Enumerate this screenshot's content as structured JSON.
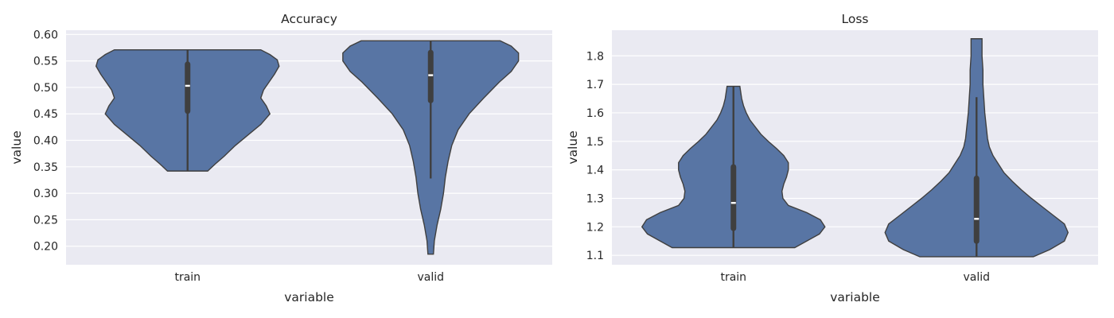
{
  "colors": {
    "violin": "#5875a4",
    "panel_bg": "#eaeaf2",
    "inner": "#3f3f3f",
    "median": "#ffffff"
  },
  "chart_data": [
    {
      "type": "violin",
      "title": "Accuracy",
      "xlabel": "variable",
      "ylabel": "value",
      "categories": [
        "train",
        "valid"
      ],
      "ylim": [
        0.165,
        0.608
      ],
      "yticks": [
        0.2,
        0.25,
        0.3,
        0.35,
        0.4,
        0.45,
        0.5,
        0.55,
        0.6
      ],
      "ytick_labels": [
        "0.20",
        "0.25",
        "0.30",
        "0.35",
        "0.40",
        "0.45",
        "0.50",
        "0.55",
        "0.60"
      ],
      "grid": true,
      "violins": [
        {
          "category": "train",
          "min": 0.342,
          "q1": 0.45,
          "median": 0.503,
          "q3": 0.549,
          "max": 0.571,
          "whisker_low": 0.342,
          "whisker_high": 0.571,
          "density": [
            [
              0.342,
              0.22
            ],
            [
              0.355,
              0.3
            ],
            [
              0.37,
              0.4
            ],
            [
              0.39,
              0.52
            ],
            [
              0.41,
              0.66
            ],
            [
              0.43,
              0.8
            ],
            [
              0.45,
              0.9
            ],
            [
              0.465,
              0.86
            ],
            [
              0.48,
              0.8
            ],
            [
              0.495,
              0.83
            ],
            [
              0.51,
              0.89
            ],
            [
              0.525,
              0.95
            ],
            [
              0.54,
              1.0
            ],
            [
              0.552,
              0.98
            ],
            [
              0.562,
              0.9
            ],
            [
              0.571,
              0.8
            ]
          ]
        },
        {
          "category": "valid",
          "min": 0.185,
          "q1": 0.47,
          "median": 0.523,
          "q3": 0.571,
          "max": 0.588,
          "whisker_low": 0.328,
          "whisker_high": 0.588,
          "density": [
            [
              0.185,
              0.03
            ],
            [
              0.21,
              0.04
            ],
            [
              0.24,
              0.07
            ],
            [
              0.27,
              0.11
            ],
            [
              0.3,
              0.14
            ],
            [
              0.33,
              0.16
            ],
            [
              0.36,
              0.19
            ],
            [
              0.39,
              0.23
            ],
            [
              0.42,
              0.3
            ],
            [
              0.45,
              0.42
            ],
            [
              0.48,
              0.58
            ],
            [
              0.51,
              0.75
            ],
            [
              0.53,
              0.88
            ],
            [
              0.55,
              0.96
            ],
            [
              0.565,
              0.96
            ],
            [
              0.578,
              0.88
            ],
            [
              0.588,
              0.76
            ]
          ]
        }
      ]
    },
    {
      "type": "violin",
      "title": "Loss",
      "xlabel": "variable",
      "ylabel": "value",
      "categories": [
        "train",
        "valid"
      ],
      "ylim": [
        1.067,
        1.89
      ],
      "yticks": [
        1.1,
        1.2,
        1.3,
        1.4,
        1.5,
        1.6,
        1.7,
        1.8
      ],
      "ytick_labels": [
        "1.1",
        "1.2",
        "1.3",
        "1.4",
        "1.5",
        "1.6",
        "1.7",
        "1.8"
      ],
      "grid": true,
      "violins": [
        {
          "category": "train",
          "min": 1.127,
          "q1": 1.185,
          "median": 1.284,
          "q3": 1.42,
          "max": 1.693,
          "whisker_low": 1.127,
          "whisker_high": 1.693,
          "density": [
            [
              1.127,
              0.67
            ],
            [
              1.15,
              0.8
            ],
            [
              1.175,
              0.94
            ],
            [
              1.2,
              1.0
            ],
            [
              1.225,
              0.95
            ],
            [
              1.25,
              0.8
            ],
            [
              1.275,
              0.6
            ],
            [
              1.3,
              0.54
            ],
            [
              1.325,
              0.53
            ],
            [
              1.35,
              0.55
            ],
            [
              1.375,
              0.58
            ],
            [
              1.4,
              0.6
            ],
            [
              1.425,
              0.6
            ],
            [
              1.45,
              0.55
            ],
            [
              1.475,
              0.47
            ],
            [
              1.5,
              0.38
            ],
            [
              1.525,
              0.3
            ],
            [
              1.55,
              0.24
            ],
            [
              1.575,
              0.18
            ],
            [
              1.6,
              0.14
            ],
            [
              1.625,
              0.11
            ],
            [
              1.65,
              0.09
            ],
            [
              1.693,
              0.07
            ]
          ]
        },
        {
          "category": "valid",
          "min": 1.095,
          "q1": 1.14,
          "median": 1.228,
          "q3": 1.38,
          "max": 1.86,
          "whisker_low": 1.095,
          "whisker_high": 1.655,
          "density": [
            [
              1.095,
              0.62
            ],
            [
              1.12,
              0.8
            ],
            [
              1.15,
              0.96
            ],
            [
              1.18,
              1.0
            ],
            [
              1.21,
              0.96
            ],
            [
              1.24,
              0.84
            ],
            [
              1.27,
              0.72
            ],
            [
              1.3,
              0.6
            ],
            [
              1.33,
              0.49
            ],
            [
              1.36,
              0.39
            ],
            [
              1.39,
              0.3
            ],
            [
              1.42,
              0.24
            ],
            [
              1.45,
              0.18
            ],
            [
              1.48,
              0.14
            ],
            [
              1.51,
              0.12
            ],
            [
              1.54,
              0.11
            ],
            [
              1.57,
              0.1
            ],
            [
              1.6,
              0.09
            ],
            [
              1.65,
              0.08
            ],
            [
              1.7,
              0.07
            ],
            [
              1.75,
              0.07
            ],
            [
              1.8,
              0.06
            ],
            [
              1.86,
              0.06
            ]
          ]
        }
      ]
    }
  ]
}
